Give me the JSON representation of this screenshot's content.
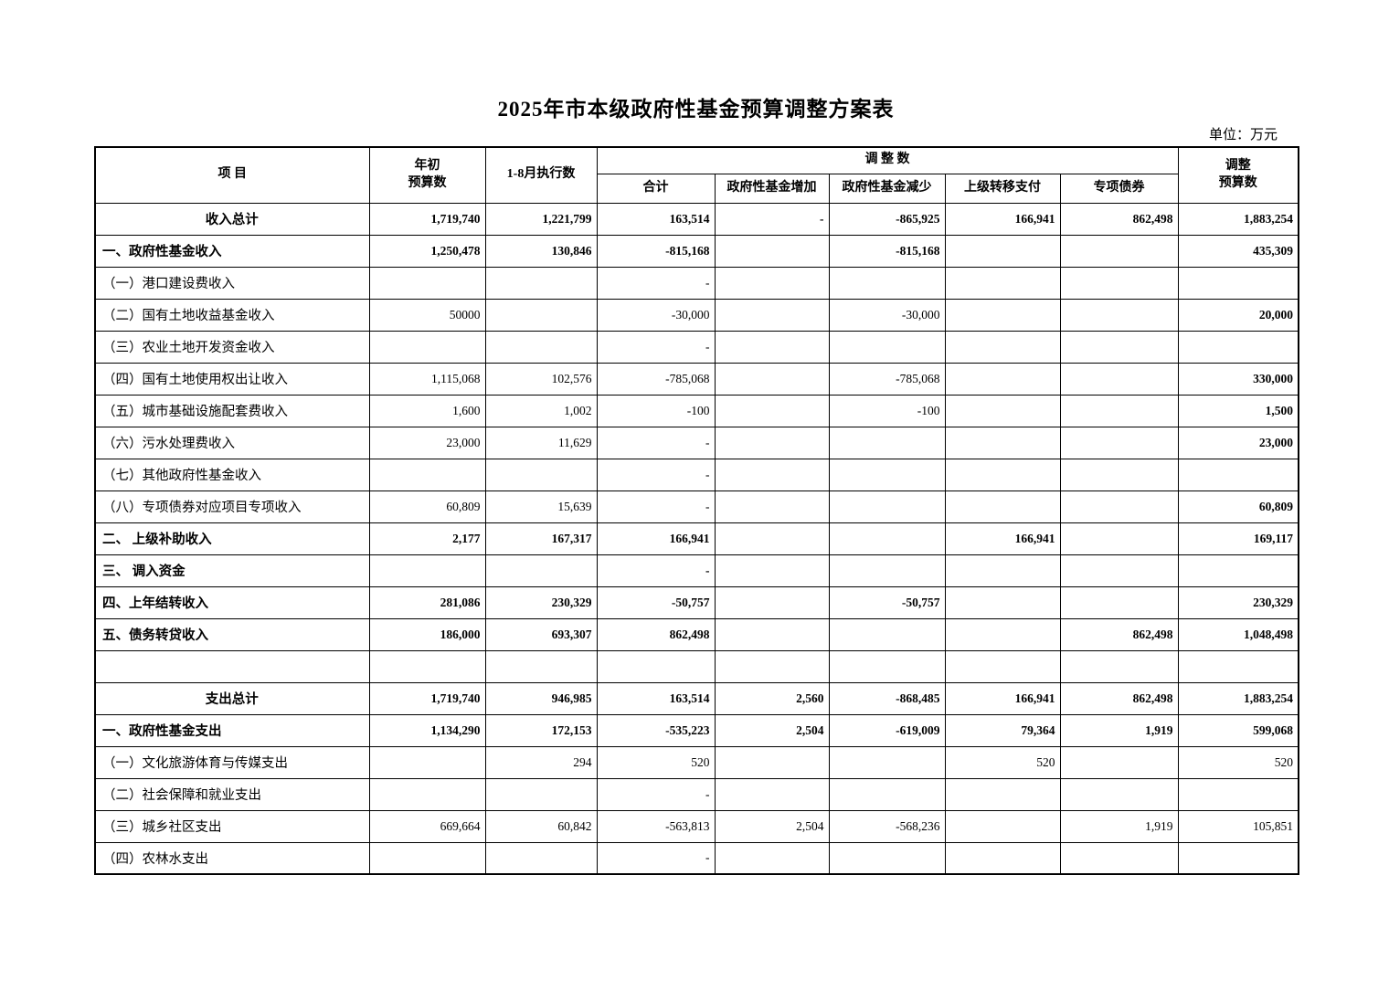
{
  "title": "2025年市本级政府性基金预算调整方案表",
  "unit_label": "单位：万元",
  "table": {
    "header": {
      "item": "项        目",
      "initial_budget": "年初\n预算数",
      "jan_aug_execution": "1-8月执行数",
      "adjustment_group": "调 整 数",
      "adjustment_total": "合计",
      "fund_increase": "政府性基金增加",
      "fund_decrease": "政府性基金减少",
      "superior_transfer": "上级转移支付",
      "special_bond": "专项债券",
      "adjusted_budget": "调整\n预算数"
    },
    "rows": [
      {
        "label": "收入总计",
        "type": "total",
        "cells": [
          "1,719,740",
          "1,221,799",
          "163,514",
          "-",
          "-865,925",
          "166,941",
          "862,498",
          "1,883,254"
        ]
      },
      {
        "label": "一、政府性基金收入",
        "type": "section",
        "cells": [
          "1,250,478",
          "130,846",
          "-815,168",
          "",
          "-815,168",
          "",
          "",
          "435,309"
        ]
      },
      {
        "label": "（一）港口建设费收入",
        "type": "item",
        "bold_last": true,
        "cells": [
          "",
          "",
          "-",
          "",
          "",
          "",
          "",
          ""
        ]
      },
      {
        "label": "（二）国有土地收益基金收入",
        "type": "item",
        "bold_last": true,
        "cells": [
          "50000",
          "",
          "-30,000",
          "",
          "-30,000",
          "",
          "",
          "20,000"
        ]
      },
      {
        "label": "（三）农业土地开发资金收入",
        "type": "item",
        "bold_last": true,
        "cells": [
          "",
          "",
          "-",
          "",
          "",
          "",
          "",
          ""
        ]
      },
      {
        "label": "（四）国有土地使用权出让收入",
        "type": "item",
        "bold_last": true,
        "cells": [
          "1,115,068",
          "102,576",
          "-785,068",
          "",
          "-785,068",
          "",
          "",
          "330,000"
        ]
      },
      {
        "label": "（五）城市基础设施配套费收入",
        "type": "item",
        "bold_last": true,
        "cells": [
          "1,600",
          "1,002",
          "-100",
          "",
          "-100",
          "",
          "",
          "1,500"
        ]
      },
      {
        "label": "（六）污水处理费收入",
        "type": "item",
        "bold_last": true,
        "cells": [
          "23,000",
          "11,629",
          "-",
          "",
          "",
          "",
          "",
          "23,000"
        ]
      },
      {
        "label": "（七）其他政府性基金收入",
        "type": "item",
        "bold_last": true,
        "cells": [
          "",
          "",
          "-",
          "",
          "",
          "",
          "",
          ""
        ]
      },
      {
        "label": "（八）专项债券对应项目专项收入",
        "type": "item",
        "bold_last": true,
        "cells": [
          "60,809",
          "15,639",
          "-",
          "",
          "",
          "",
          "",
          "60,809"
        ]
      },
      {
        "label": "二、 上级补助收入",
        "type": "section",
        "cells": [
          "2,177",
          "167,317",
          "166,941",
          "",
          "",
          "166,941",
          "",
          "169,117"
        ]
      },
      {
        "label": "三、 调入资金",
        "type": "section",
        "cells": [
          "",
          "",
          "-",
          "",
          "",
          "",
          "",
          ""
        ]
      },
      {
        "label": "四、上年结转收入",
        "type": "section",
        "cells": [
          "281,086",
          "230,329",
          "-50,757",
          "",
          "-50,757",
          "",
          "",
          "230,329"
        ]
      },
      {
        "label": "五、债务转贷收入",
        "type": "section",
        "cells": [
          "186,000",
          "693,307",
          "862,498",
          "",
          "",
          "",
          "862,498",
          "1,048,498"
        ]
      },
      {
        "label": "",
        "type": "empty",
        "cells": [
          "",
          "",
          "",
          "",
          "",
          "",
          "",
          ""
        ]
      },
      {
        "label": "支出总计",
        "type": "total",
        "cells": [
          "1,719,740",
          "946,985",
          "163,514",
          "2,560",
          "-868,485",
          "166,941",
          "862,498",
          "1,883,254"
        ]
      },
      {
        "label": "一、政府性基金支出",
        "type": "section",
        "cells": [
          "1,134,290",
          "172,153",
          "-535,223",
          "2,504",
          "-619,009",
          "79,364",
          "1,919",
          "599,068"
        ]
      },
      {
        "label": "（一）文化旅游体育与传媒支出",
        "type": "item",
        "cells": [
          "",
          "294",
          "520",
          "",
          "",
          "520",
          "",
          "520"
        ]
      },
      {
        "label": "（二）社会保障和就业支出",
        "type": "item",
        "cells": [
          "",
          "",
          "-",
          "",
          "",
          "",
          "",
          ""
        ]
      },
      {
        "label": "（三）城乡社区支出",
        "type": "item",
        "cells": [
          "669,664",
          "60,842",
          "-563,813",
          "2,504",
          "-568,236",
          "",
          "1,919",
          "105,851"
        ]
      },
      {
        "label": "（四）农林水支出",
        "type": "item",
        "cells": [
          "",
          "",
          "-",
          "",
          "",
          "",
          "",
          ""
        ]
      }
    ]
  }
}
